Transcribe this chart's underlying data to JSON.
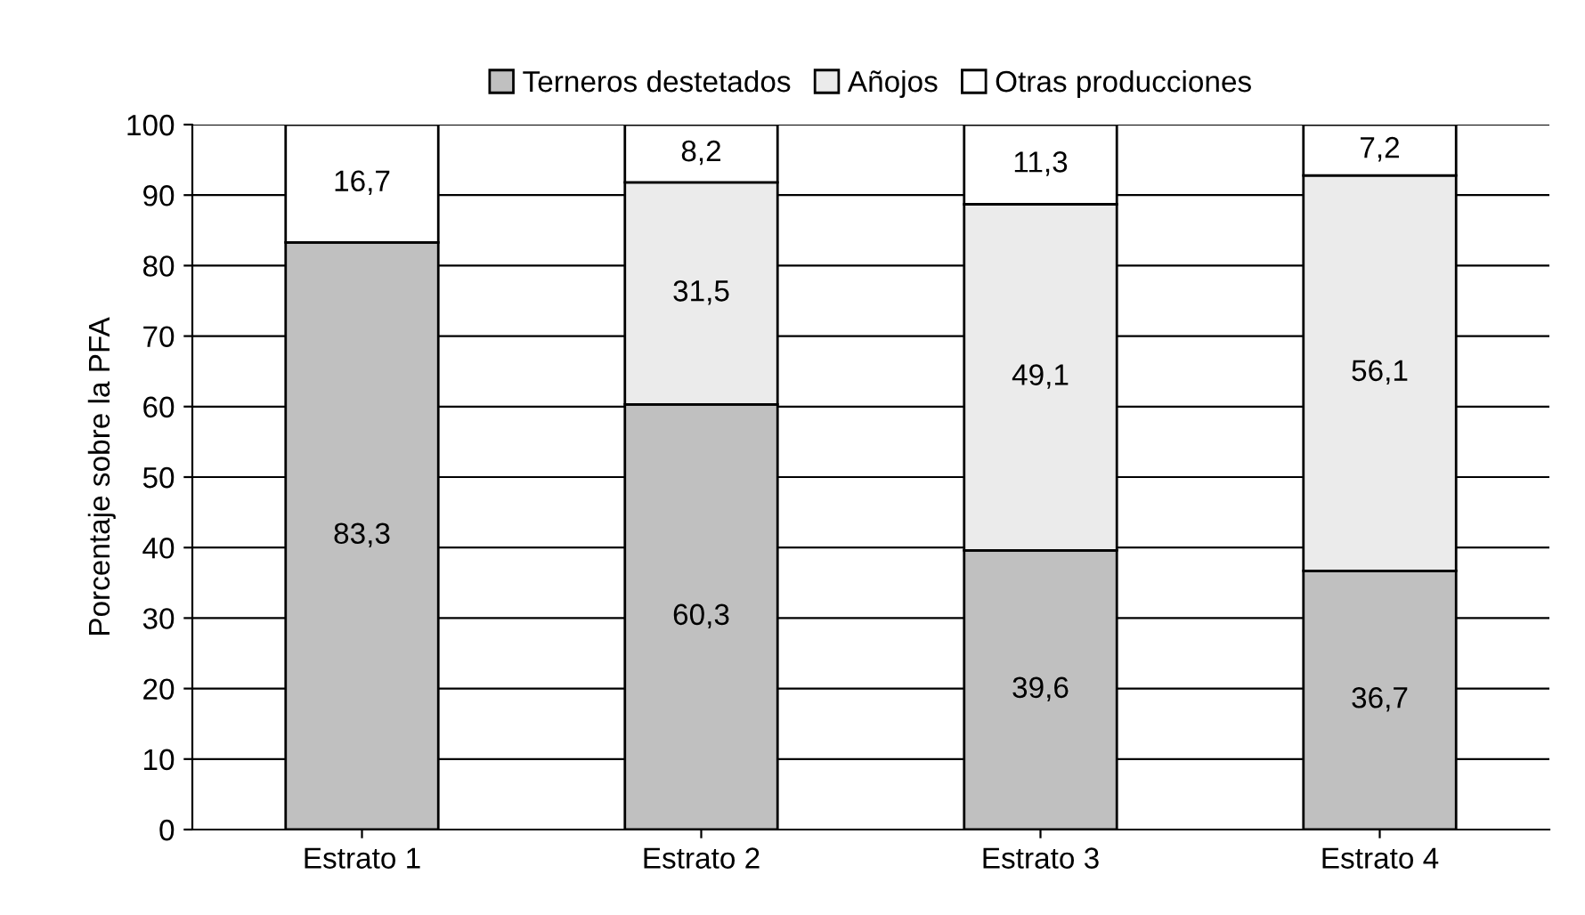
{
  "chart_data": {
    "type": "bar",
    "stacked": true,
    "ylabel": "Porcentaje sobre la PFA",
    "categories": [
      "Estrato 1",
      "Estrato 2",
      "Estrato 3",
      "Estrato 4"
    ],
    "series": [
      {
        "name": "Terneros destetados",
        "color": "#c0c0c0",
        "values": [
          83.3,
          60.3,
          39.6,
          36.7
        ],
        "value_labels": [
          "83,3",
          "60,3",
          "39,6",
          "36,7"
        ]
      },
      {
        "name": "Añojos",
        "color": "#ebebeb",
        "values": [
          null,
          31.5,
          49.1,
          56.1
        ],
        "value_labels": [
          null,
          "31,5",
          "49,1",
          "56,1"
        ]
      },
      {
        "name": "Otras producciones",
        "color": "#ffffff",
        "values": [
          16.7,
          8.2,
          11.3,
          7.2
        ],
        "value_labels": [
          "16,7",
          "8,2",
          "11,3",
          "7,2"
        ]
      }
    ],
    "ylim": [
      0,
      100
    ],
    "yticks": [
      0,
      10,
      20,
      30,
      40,
      50,
      60,
      70,
      80,
      90,
      100
    ],
    "grid": "y",
    "legend": "top"
  }
}
